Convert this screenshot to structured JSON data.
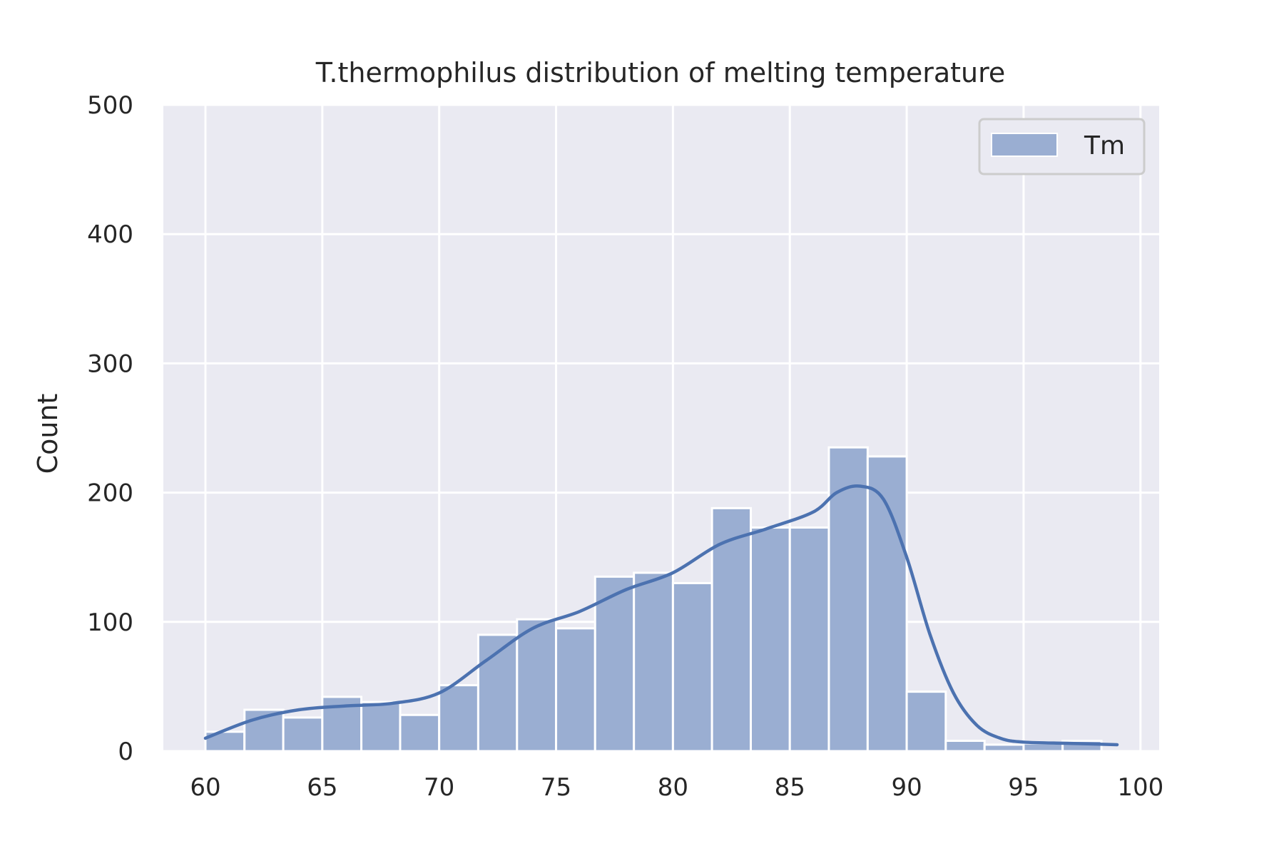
{
  "chart_data": {
    "type": "bar",
    "subtype": "histogram-with-kde",
    "title": "T.thermophilus distribution of melting temperature",
    "xlabel": "",
    "ylabel": "Count",
    "xlim": [
      58.2,
      100.8
    ],
    "ylim": [
      0,
      500
    ],
    "x_ticks": [
      60,
      65,
      70,
      75,
      80,
      85,
      90,
      95,
      100
    ],
    "y_ticks": [
      0,
      100,
      200,
      300,
      400,
      500
    ],
    "grid": true,
    "legend": {
      "position": "top-right",
      "entries": [
        "Tm"
      ]
    },
    "series": [
      {
        "name": "Tm",
        "bin_edges": [
          60.0,
          61.67,
          63.33,
          65.0,
          66.67,
          68.33,
          70.0,
          71.67,
          73.33,
          75.0,
          76.67,
          78.33,
          80.0,
          81.67,
          83.33,
          85.0,
          86.67,
          88.33,
          90.0,
          91.67,
          93.33,
          95.0,
          96.67,
          98.33
        ],
        "counts": [
          15,
          32,
          26,
          42,
          38,
          28,
          51,
          90,
          102,
          95,
          135,
          138,
          130,
          188,
          173,
          173,
          235,
          228,
          46,
          8,
          5,
          6,
          8
        ],
        "kde": {
          "x": [
            60,
            62,
            64,
            66,
            68,
            70,
            72,
            74,
            76,
            78,
            80,
            82,
            84,
            86,
            87,
            88,
            89,
            90,
            91,
            92,
            93,
            94,
            95,
            97,
            99
          ],
          "y": [
            10,
            24,
            32,
            35,
            37,
            45,
            70,
            95,
            108,
            125,
            138,
            160,
            172,
            185,
            200,
            205,
            195,
            150,
            90,
            45,
            20,
            10,
            7,
            6,
            5
          ]
        }
      }
    ],
    "colors": {
      "bar": "#9aaed2",
      "line": "#4c72b0",
      "background": "#eaeaf2",
      "grid": "#ffffff"
    }
  }
}
